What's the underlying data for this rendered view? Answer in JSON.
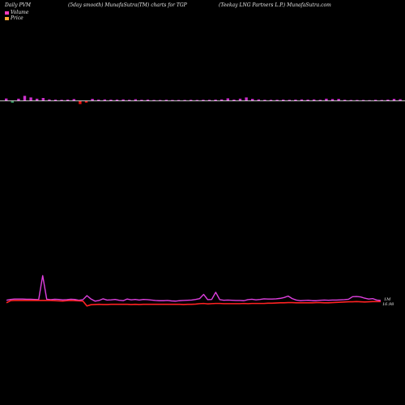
{
  "header": {
    "left": "Daily PVM",
    "middle": "(5day smooth) MunafaSutra(TM) charts for TGP",
    "right": "(Teekay LNG Partners L.P.) MunafaSutra.com"
  },
  "legend": {
    "volume_label": "Volume",
    "price_label": "Price",
    "volume_color": "#ff3bbd",
    "price_color": "#ffaa33"
  },
  "colors": {
    "background": "#000000",
    "up_bar": "#cc33cc",
    "down_bar": "#ee1111",
    "neutral_bar": "#2e8b57",
    "volume_line": "#e040e0",
    "price_line": "#ff2222",
    "baseline": "#ffffff"
  },
  "chart_data": [
    {
      "type": "bar",
      "series": [
        {
          "values": [
            1.3,
            -1.1,
            1.2,
            2.8,
            1.9,
            1.2,
            1.6,
            0.8,
            0.7,
            0.6,
            0.7,
            1.0,
            -1.8,
            -1.0,
            1.1,
            0.7,
            0.8,
            0.7,
            0.7,
            0.8,
            0.6,
            0.9,
            0.6,
            0.7,
            0.5,
            0.5,
            0.6,
            0.5,
            0.5,
            0.5,
            0.6,
            0.5,
            0.6,
            0.6,
            0.7,
            0.8,
            1.4,
            0.7,
            1.2,
            1.9,
            1.1,
            0.8,
            0.6,
            0.6,
            0.6,
            0.7,
            0.6,
            0.7,
            0.8,
            0.7,
            0.8,
            0.6,
            1.2,
            1.0,
            1.1,
            0.6,
            0.5,
            0.5,
            0.5,
            0.4,
            0.6,
            0.5,
            0.7,
            1.1,
            0.9,
            1.0,
            0.8,
            0.7,
            0.6,
            0.6,
            0.5,
            0.5,
            0.6,
            0.5
          ],
          "colors": [
            "up",
            "neutral",
            "up",
            "up",
            "up",
            "up",
            "up",
            "up",
            "up",
            "up",
            "up",
            "up",
            "down",
            "down",
            "up",
            "up",
            "up",
            "up",
            "up",
            "up",
            "up",
            "up",
            "up",
            "up",
            "up",
            "up",
            "up",
            "up",
            "up",
            "up",
            "up",
            "up",
            "up",
            "up",
            "up",
            "up",
            "up",
            "up",
            "up",
            "up",
            "up",
            "up",
            "up",
            "up",
            "up",
            "up",
            "up",
            "up",
            "up",
            "up",
            "up",
            "up",
            "up",
            "up",
            "up",
            "up",
            "up",
            "up",
            "up",
            "up",
            "up",
            "up",
            "up",
            "up",
            "up",
            "up",
            "up",
            "up",
            "up",
            "up",
            "up",
            "up",
            "up",
            "up"
          ]
        }
      ]
    },
    {
      "type": "line",
      "series": [
        {
          "name": "Volume",
          "values": [
            2.8,
            3.2,
            3.4,
            3.4,
            3.4,
            3.3,
            3.3,
            3.2,
            3.1,
            14.5,
            3.3,
            3.1,
            3.3,
            3.2,
            3.0,
            3.1,
            3.3,
            3.2,
            2.8,
            3.1,
            5.0,
            3.4,
            2.4,
            2.7,
            3.5,
            2.9,
            3.0,
            3.2,
            2.8,
            2.6,
            3.4,
            3.0,
            3.2,
            2.9,
            3.2,
            3.1,
            2.9,
            2.7,
            2.6,
            2.6,
            2.7,
            2.5,
            2.4,
            2.6,
            2.7,
            2.8,
            2.9,
            3.2,
            3.6,
            5.6,
            3.1,
            3.2,
            6.6,
            3.1,
            2.8,
            2.9,
            2.8,
            2.7,
            2.7,
            2.6,
            3.1,
            3.3,
            3.0,
            3.2,
            3.5,
            3.4,
            3.4,
            3.5,
            3.7,
            4.1,
            4.8,
            3.6,
            2.9,
            2.6,
            2.7,
            2.8,
            2.6,
            2.6,
            2.8,
            2.9,
            2.8,
            2.9,
            2.9,
            3.0,
            3.1,
            3.3,
            4.5,
            4.6,
            4.4,
            3.8,
            3.4,
            3.6,
            2.9,
            2.7
          ]
        },
        {
          "name": "Price",
          "values": [
            1.6,
            2.6,
            2.7,
            2.7,
            2.7,
            2.7,
            2.7,
            2.7,
            2.7,
            2.7,
            2.7,
            2.7,
            2.6,
            2.5,
            2.4,
            2.6,
            2.7,
            2.6,
            2.5,
            2.4,
            0.1,
            0.7,
            0.8,
            0.9,
            0.8,
            0.8,
            0.9,
            0.9,
            0.9,
            0.9,
            0.9,
            0.8,
            0.9,
            0.8,
            0.9,
            0.9,
            0.9,
            0.9,
            0.9,
            0.9,
            0.9,
            0.9,
            0.9,
            0.9,
            0.8,
            0.9,
            0.9,
            1.0,
            1.2,
            1.3,
            1.1,
            1.2,
            1.3,
            1.3,
            1.2,
            1.2,
            1.2,
            1.2,
            1.2,
            1.3,
            1.2,
            1.3,
            1.3,
            1.3,
            1.3,
            1.4,
            1.4,
            1.5,
            1.6,
            1.6,
            1.7,
            1.7,
            1.6,
            1.6,
            1.6,
            1.6,
            1.6,
            1.7,
            1.7,
            1.6,
            1.6,
            1.7,
            1.8,
            1.9,
            2.0,
            2.1,
            2.1,
            2.2,
            2.1,
            2.0,
            2.1,
            2.2,
            2.2,
            2.2
          ]
        }
      ],
      "last_label_volume": "1M",
      "last_label_price": "16.98"
    }
  ]
}
